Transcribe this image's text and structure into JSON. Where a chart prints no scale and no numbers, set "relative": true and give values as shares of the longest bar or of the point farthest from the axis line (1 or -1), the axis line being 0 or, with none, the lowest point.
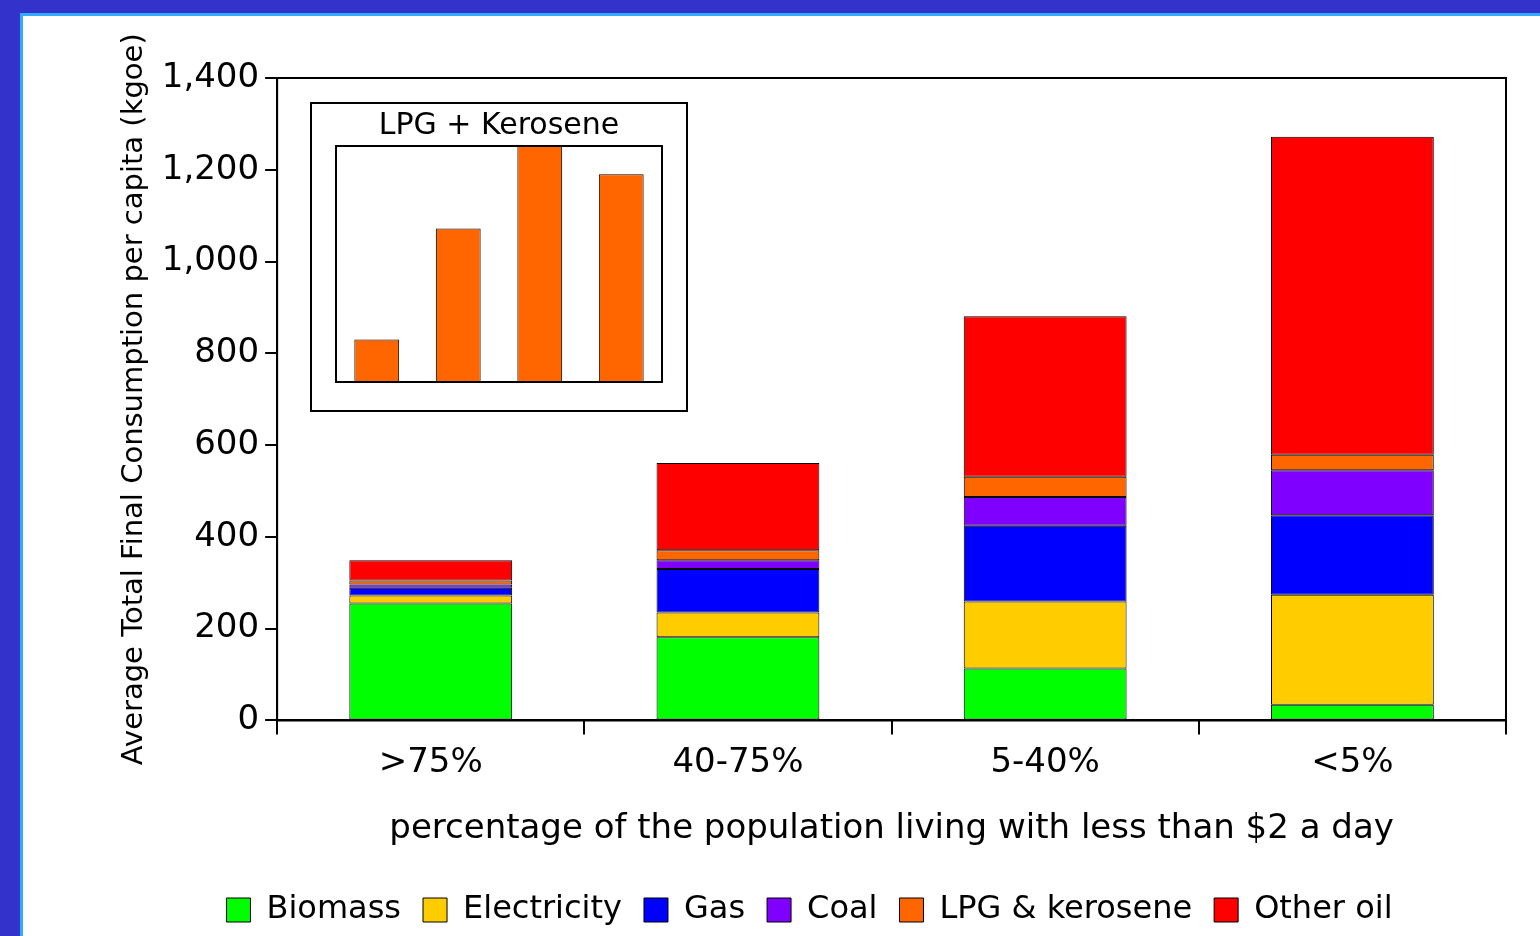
{
  "chart_data": [
    {
      "type": "bar",
      "stacked": true,
      "xlabel": "percentage of the population living with less than $2 a day",
      "ylabel": "Average Total Final Consumption per capita (kgoe)",
      "categories": [
        ">75%",
        "40-75%",
        "5-40%",
        "<5%"
      ],
      "series": [
        {
          "name": "Biomass",
          "color": "#00ff00",
          "values": [
            255,
            181,
            113,
            34
          ]
        },
        {
          "name": "Electricity",
          "color": "#ffcc00",
          "values": [
            17,
            54,
            146,
            240
          ]
        },
        {
          "name": "Gas",
          "color": "#0000ff",
          "values": [
            17,
            95,
            165,
            173
          ]
        },
        {
          "name": "Coal",
          "color": "#8000ff",
          "values": [
            7,
            19,
            63,
            98
          ]
        },
        {
          "name": "LPG & kerosene",
          "color": "#ff6600",
          "values": [
            9,
            22,
            44,
            34
          ]
        },
        {
          "name": "Other oil",
          "color": "#ff0000",
          "values": [
            44,
            190,
            350,
            693
          ]
        }
      ],
      "ylim": [
        0,
        1400
      ],
      "yticks": [
        0,
        200,
        400,
        600,
        800,
        {
          "value": 1000,
          "label": "1,000"
        },
        {
          "value": 1200,
          "label": "1,200"
        },
        {
          "value": 1400,
          "label": "1,400"
        }
      ],
      "grid": false,
      "legend": "bottom"
    },
    {
      "type": "bar",
      "title": "LPG + Kerosene",
      "relative": true,
      "categories": [
        null,
        null,
        null,
        null
      ],
      "values": [
        0.18,
        0.65,
        1,
        0.88
      ],
      "color": "#ff6600",
      "grid": false,
      "legend": false
    }
  ]
}
